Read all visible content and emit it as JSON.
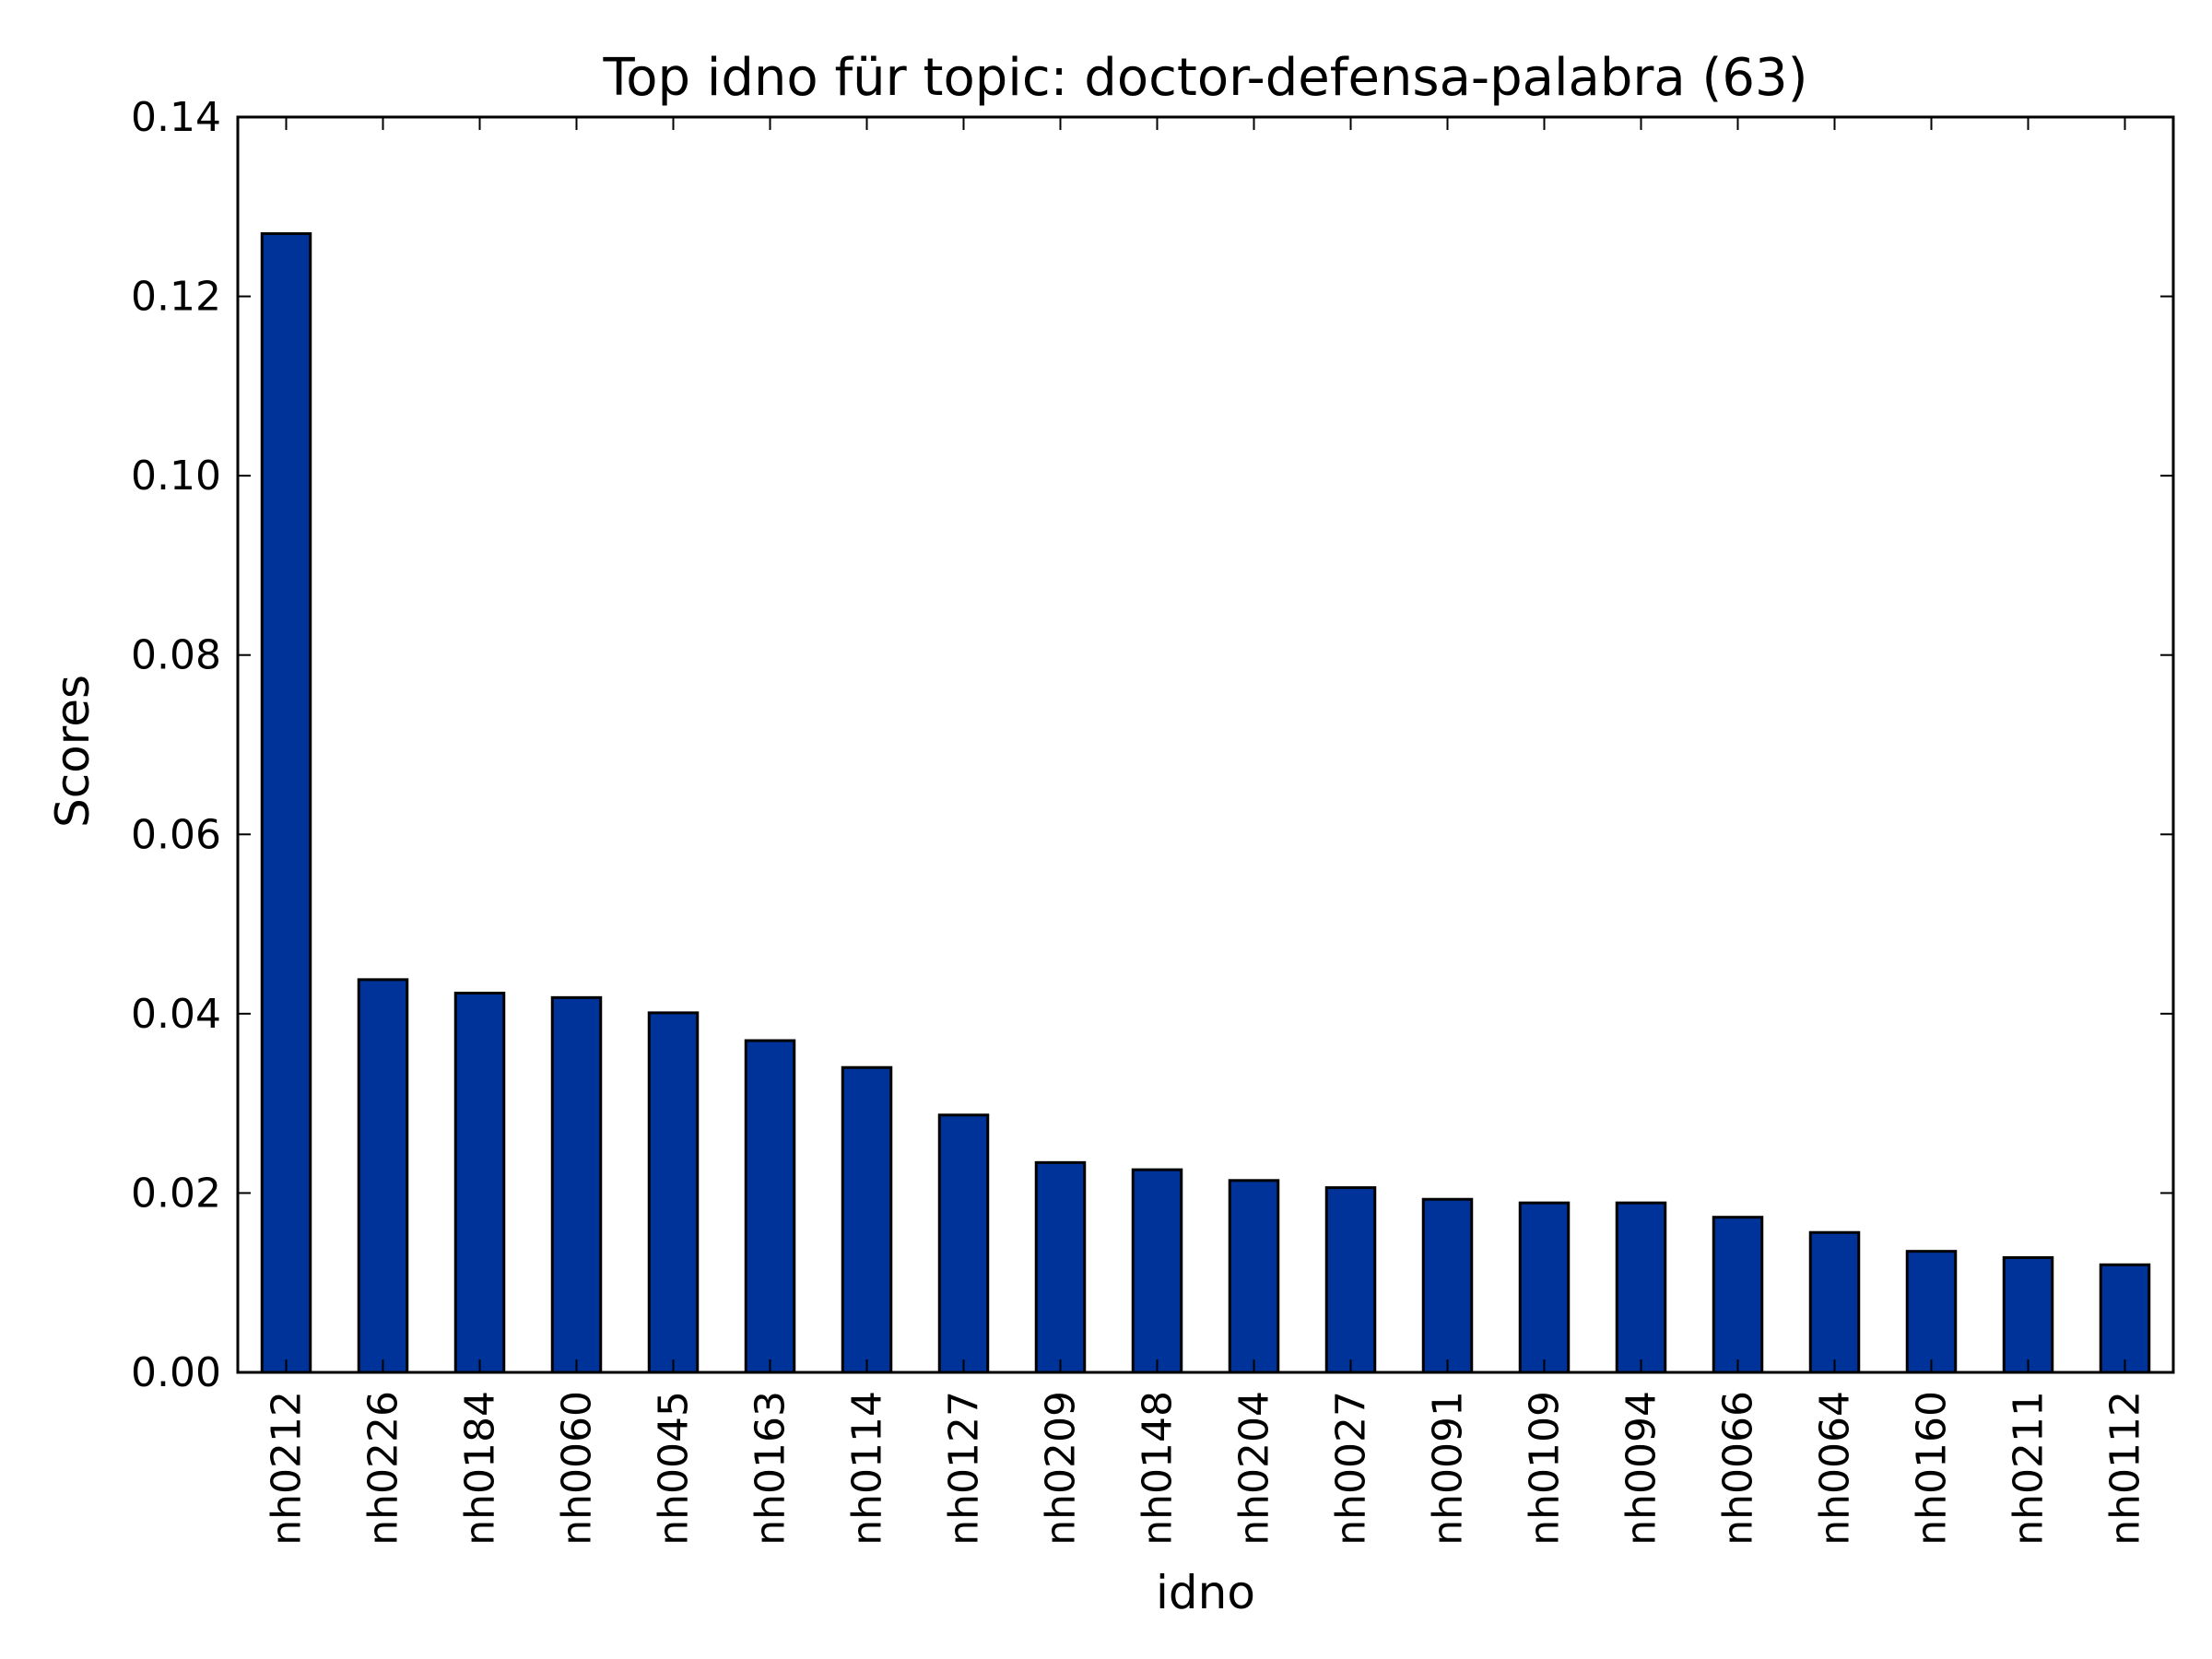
{
  "chart_data": {
    "type": "bar",
    "title": "Top idno für topic: doctor-defensa-palabra (63)",
    "xlabel": "idno",
    "ylabel": "Scores",
    "ylim": [
      0,
      0.14
    ],
    "yticks": [
      "0.00",
      "0.02",
      "0.04",
      "0.06",
      "0.08",
      "0.10",
      "0.12",
      "0.14"
    ],
    "grid": false,
    "legend": "none",
    "bar_color": "#003399",
    "categories": [
      "nh0212",
      "nh0226",
      "nh0184",
      "nh0060",
      "nh0045",
      "nh0163",
      "nh0114",
      "nh0127",
      "nh0209",
      "nh0148",
      "nh0204",
      "nh0027",
      "nh0091",
      "nh0109",
      "nh0094",
      "nh0066",
      "nh0064",
      "nh0160",
      "nh0211",
      "nh0112"
    ],
    "values": [
      0.127,
      0.0438,
      0.0423,
      0.0418,
      0.0401,
      0.037,
      0.034,
      0.0287,
      0.0234,
      0.0226,
      0.0214,
      0.0206,
      0.0193,
      0.0189,
      0.0189,
      0.0173,
      0.0156,
      0.0135,
      0.0128,
      0.012
    ]
  }
}
